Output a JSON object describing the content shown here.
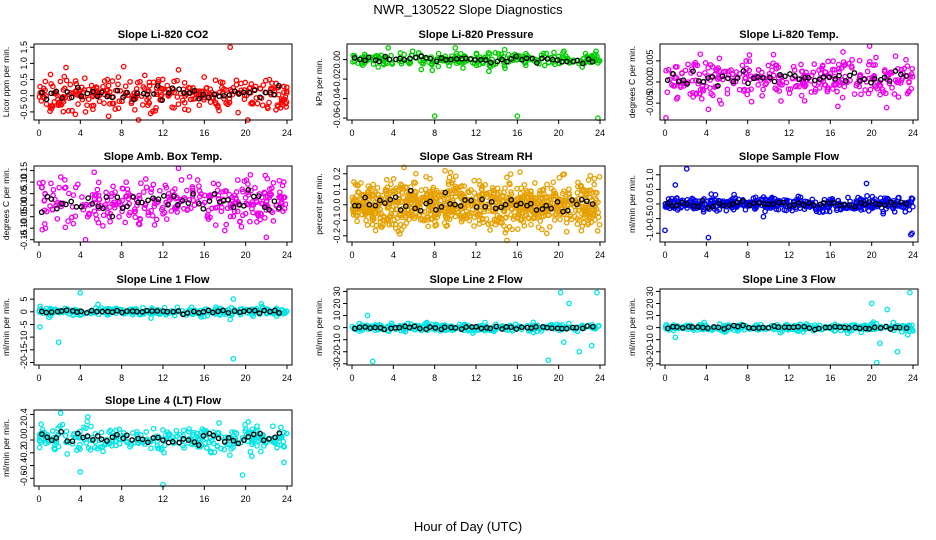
{
  "figure": {
    "title": "NWR_130522  Slope Diagnostics",
    "xlabel": "Hour of Day (UTC)"
  },
  "chart_data": [
    {
      "type": "scatter",
      "title": "Slope Li-820 CO2",
      "ylabel": "Licor ppm per min.",
      "xlim": [
        0,
        24
      ],
      "xticks": [
        0,
        4,
        8,
        12,
        16,
        20,
        24
      ],
      "ylim": [
        -0.75,
        1.6
      ],
      "yticks": [
        -0.5,
        0.0,
        0.5,
        1.0,
        1.5
      ],
      "ytick_labels": [
        "-0.5",
        "0.0",
        "0.5",
        "1.0",
        "1.5"
      ],
      "color": "#ff0000",
      "n_points": 320,
      "center": 0.05,
      "spread": 0.25,
      "outliers": [
        {
          "x": 8.2,
          "y": 0.9
        },
        {
          "x": 13.5,
          "y": 0.8
        },
        {
          "x": 18.5,
          "y": 1.5
        },
        {
          "x": 1.2,
          "y": -0.4
        },
        {
          "x": 4.5,
          "y": -0.5
        },
        {
          "x": 10.8,
          "y": -0.55
        }
      ]
    },
    {
      "type": "scatter",
      "title": "Slope Li-820 Pressure",
      "ylabel": "kPa per min.",
      "xlim": [
        0,
        24
      ],
      "xticks": [
        0,
        4,
        8,
        12,
        16,
        20,
        24
      ],
      "ylim": [
        -0.062,
        0.016
      ],
      "yticks": [
        -0.06,
        -0.04,
        -0.02,
        0.0
      ],
      "ytick_labels": [
        "-0.06",
        "-0.04",
        "-0.02",
        "0.00"
      ],
      "color": "#00cc00",
      "n_points": 240,
      "center": 0.0,
      "spread": 0.004,
      "outliers": [
        {
          "x": 8.0,
          "y": -0.058
        },
        {
          "x": 16.0,
          "y": -0.058
        },
        {
          "x": 23.8,
          "y": -0.06
        },
        {
          "x": 10.0,
          "y": 0.012
        },
        {
          "x": 3.5,
          "y": 0.012
        }
      ]
    },
    {
      "type": "scatter",
      "title": "Slope Li-820 Temp.",
      "ylabel": "degrees C per min.",
      "xlim": [
        0,
        24
      ],
      "xticks": [
        0,
        4,
        8,
        12,
        16,
        20,
        24
      ],
      "ylim": [
        -0.009,
        0.009
      ],
      "yticks": [
        -0.005,
        0.0,
        0.005
      ],
      "ytick_labels": [
        "-0.005",
        "0.000",
        "0.005"
      ],
      "color": "#ee00ee",
      "n_points": 330,
      "center": 0.0008,
      "spread": 0.0024,
      "outliers": [
        {
          "x": 19.8,
          "y": 0.0085
        },
        {
          "x": 0.1,
          "y": -0.0085
        },
        {
          "x": 10.5,
          "y": 0.0065
        },
        {
          "x": 4.2,
          "y": -0.0065
        }
      ]
    },
    {
      "type": "scatter",
      "title": "Slope Amb. Box Temp.",
      "ylabel": "degrees C per min.",
      "xlim": [
        0,
        24
      ],
      "xticks": [
        0,
        4,
        8,
        12,
        16,
        20,
        24
      ],
      "ylim": [
        -0.16,
        0.17
      ],
      "yticks": [
        -0.15,
        -0.1,
        -0.05,
        0.0,
        0.05,
        0.1,
        0.15
      ],
      "ytick_labels": [
        "-0.15",
        "-0.10",
        "-0.05",
        "0.00",
        "0.05",
        "0.10",
        "0.15"
      ],
      "color": "#ee00ee",
      "n_points": 330,
      "center": 0.01,
      "spread": 0.05,
      "outliers": [
        {
          "x": 13.5,
          "y": 0.16
        },
        {
          "x": 4.5,
          "y": -0.15
        },
        {
          "x": 22.0,
          "y": -0.14
        }
      ]
    },
    {
      "type": "scatter",
      "title": "Slope Gas Stream RH",
      "ylabel": "percent per min.",
      "xlim": [
        0,
        24
      ],
      "xticks": [
        0,
        4,
        8,
        12,
        16,
        20,
        24
      ],
      "ylim": [
        -0.24,
        0.25
      ],
      "yticks": [
        -0.2,
        -0.1,
        0.0,
        0.1,
        0.2
      ],
      "ytick_labels": [
        "-0.2",
        "-0.1",
        "0.0",
        "0.1",
        "0.2"
      ],
      "color": "#e6a000",
      "n_points": 900,
      "center": 0.0,
      "spread": 0.075,
      "outliers": [
        {
          "x": 9.0,
          "y": 0.22
        },
        {
          "x": 15.0,
          "y": -0.23
        }
      ]
    },
    {
      "type": "scatter",
      "title": "Slope Sample Flow",
      "ylabel": "ml/min per min.",
      "xlim": [
        0,
        24
      ],
      "xticks": [
        0,
        4,
        8,
        12,
        16,
        20,
        24
      ],
      "ylim": [
        -1.3,
        1.3
      ],
      "yticks": [
        -1.0,
        -0.5,
        0.0,
        0.5,
        1.0
      ],
      "ytick_labels": [
        "-1.0",
        "-0.5",
        "0.0",
        "0.5",
        "1.0"
      ],
      "color": "#0000ee",
      "n_points": 420,
      "center": 0.0,
      "spread": 0.12,
      "outliers": [
        {
          "x": 2.1,
          "y": 1.2
        },
        {
          "x": 4.2,
          "y": -1.15
        },
        {
          "x": 0.0,
          "y": -0.9
        },
        {
          "x": 23.9,
          "y": -1.0
        },
        {
          "x": 23.8,
          "y": -1.05
        },
        {
          "x": 1.0,
          "y": 0.65
        },
        {
          "x": 19.5,
          "y": 0.7
        }
      ]
    },
    {
      "type": "scatter",
      "title": "Slope Line 1 Flow",
      "ylabel": "ml/min per min.",
      "xlim": [
        0,
        24
      ],
      "xticks": [
        0,
        4,
        8,
        12,
        16,
        20,
        24
      ],
      "ylim": [
        -21,
        9
      ],
      "yticks": [
        -20,
        -15,
        -10,
        -5,
        0,
        5
      ],
      "ytick_labels": [
        "-20",
        "-15",
        "-10",
        "-5",
        "0",
        "5"
      ],
      "color": "#00e5e5",
      "n_points": 280,
      "center": 0.0,
      "spread": 0.8,
      "outliers": [
        {
          "x": 1.9,
          "y": -12
        },
        {
          "x": 0.1,
          "y": -6
        },
        {
          "x": 18.8,
          "y": -18.5
        },
        {
          "x": 18.5,
          "y": -3
        },
        {
          "x": 4.0,
          "y": 7.5
        },
        {
          "x": 18.8,
          "y": 5
        }
      ]
    },
    {
      "type": "scatter",
      "title": "Slope Line 2 Flow",
      "ylabel": "ml/min per min.",
      "xlim": [
        0,
        24
      ],
      "xticks": [
        0,
        4,
        8,
        12,
        16,
        20,
        24
      ],
      "ylim": [
        -31,
        32
      ],
      "yticks": [
        -30,
        -20,
        -10,
        0,
        10,
        20,
        30
      ],
      "ytick_labels": [
        "-30",
        "-20",
        "-10",
        "0",
        "10",
        "20",
        "30"
      ],
      "color": "#00e5e5",
      "n_points": 300,
      "center": 0.0,
      "spread": 1.5,
      "outliers": [
        {
          "x": 2.0,
          "y": -28
        },
        {
          "x": 19.0,
          "y": -27
        },
        {
          "x": 20.2,
          "y": 29
        },
        {
          "x": 23.7,
          "y": 29
        },
        {
          "x": 21.0,
          "y": 20
        },
        {
          "x": 22.0,
          "y": -20
        },
        {
          "x": 1.5,
          "y": 10
        },
        {
          "x": 20.5,
          "y": -12
        },
        {
          "x": 23.2,
          "y": -15
        }
      ]
    },
    {
      "type": "scatter",
      "title": "Slope Line 3 Flow",
      "ylabel": "ml/min per min.",
      "xlim": [
        0,
        24
      ],
      "xticks": [
        0,
        4,
        8,
        12,
        16,
        20,
        24
      ],
      "ylim": [
        -31,
        32
      ],
      "yticks": [
        -30,
        -20,
        -10,
        0,
        10,
        20,
        30
      ],
      "ytick_labels": [
        "-30",
        "-20",
        "-10",
        "0",
        "10",
        "20",
        "30"
      ],
      "color": "#00e5e5",
      "n_points": 300,
      "center": 0.0,
      "spread": 1.5,
      "outliers": [
        {
          "x": 20.5,
          "y": -29
        },
        {
          "x": 20.0,
          "y": 20
        },
        {
          "x": 21.5,
          "y": 15
        },
        {
          "x": 23.7,
          "y": 29
        },
        {
          "x": 20.8,
          "y": -13
        },
        {
          "x": 22.5,
          "y": -20
        },
        {
          "x": 1.0,
          "y": -8
        },
        {
          "x": 23.5,
          "y": -6
        }
      ]
    },
    {
      "type": "scatter",
      "title": "Slope Line 4 (LT) Flow",
      "ylabel": "ml/min per min.",
      "xlim": [
        0,
        24
      ],
      "xticks": [
        0,
        4,
        8,
        12,
        16,
        20,
        24
      ],
      "ylim": [
        -0.72,
        0.47
      ],
      "yticks": [
        -0.6,
        -0.4,
        -0.2,
        0.0,
        0.2,
        0.4
      ],
      "ytick_labels": [
        "-0.6",
        "-0.4",
        "-0.2",
        "0.0",
        "0.2",
        "0.4"
      ],
      "color": "#00e5e5",
      "n_points": 300,
      "center": 0.02,
      "spread": 0.1,
      "outliers": [
        {
          "x": 2.1,
          "y": 0.42
        },
        {
          "x": 12.0,
          "y": -0.7
        },
        {
          "x": 4.0,
          "y": -0.5
        },
        {
          "x": 19.7,
          "y": -0.55
        },
        {
          "x": 23.7,
          "y": -0.35
        },
        {
          "x": 0.2,
          "y": 0.25
        }
      ]
    }
  ]
}
